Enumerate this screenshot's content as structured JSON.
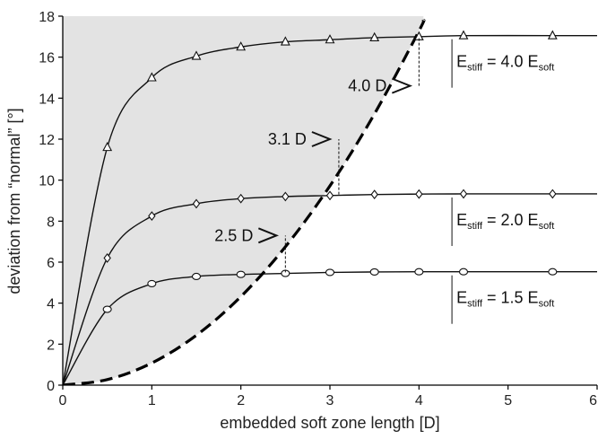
{
  "chart_data": {
    "type": "line",
    "xlabel": "embedded soft zone length [D]",
    "ylabel": "deviation from “normal” [°]",
    "xlim": [
      0,
      6
    ],
    "ylim": [
      0,
      18
    ],
    "x_ticks": [
      "0",
      "1",
      "2",
      "3",
      "4",
      "5",
      "6"
    ],
    "y_ticks": [
      "0",
      "2",
      "4",
      "6",
      "8",
      "10",
      "12",
      "14",
      "16",
      "18"
    ],
    "grid": false,
    "shaded_region_color": "#e3e3e3",
    "series": [
      {
        "marker": "triangle",
        "label_parts": [
          "E",
          "stiff",
          " = 4.0 E",
          "soft"
        ],
        "points": [
          [
            0,
            0
          ],
          [
            0.5,
            11.6
          ],
          [
            1,
            15.0
          ],
          [
            1.5,
            16.05
          ],
          [
            2,
            16.5
          ],
          [
            2.5,
            16.75
          ],
          [
            3,
            16.85
          ],
          [
            3.5,
            16.95
          ],
          [
            4,
            17.0
          ],
          [
            4.5,
            17.05
          ],
          [
            5.5,
            17.05
          ],
          [
            6,
            17.05
          ]
        ],
        "marker_x": [
          0.5,
          1,
          1.5,
          2,
          2.5,
          3,
          3.5,
          4,
          4.5,
          5.5
        ]
      },
      {
        "marker": "diamond",
        "label_parts": [
          "E",
          "stiff",
          " = 2.0 E",
          "soft"
        ],
        "points": [
          [
            0,
            0
          ],
          [
            0.5,
            6.2
          ],
          [
            1,
            8.25
          ],
          [
            1.5,
            8.85
          ],
          [
            2,
            9.1
          ],
          [
            2.5,
            9.2
          ],
          [
            3,
            9.25
          ],
          [
            3.5,
            9.3
          ],
          [
            4,
            9.32
          ],
          [
            4.5,
            9.33
          ],
          [
            5.5,
            9.33
          ],
          [
            6,
            9.33
          ]
        ],
        "marker_x": [
          0.5,
          1,
          1.5,
          2,
          2.5,
          3,
          3.5,
          4,
          4.5,
          5.5
        ]
      },
      {
        "marker": "circle",
        "label_parts": [
          "E",
          "stiff",
          " = 1.5 E",
          "soft"
        ],
        "points": [
          [
            0,
            0
          ],
          [
            0.5,
            3.7
          ],
          [
            1,
            4.95
          ],
          [
            1.5,
            5.3
          ],
          [
            2,
            5.4
          ],
          [
            2.5,
            5.45
          ],
          [
            3,
            5.5
          ],
          [
            3.5,
            5.52
          ],
          [
            4,
            5.53
          ],
          [
            4.5,
            5.53
          ],
          [
            5.5,
            5.53
          ],
          [
            6,
            5.53
          ]
        ],
        "marker_x": [
          0.5,
          1,
          1.5,
          2,
          2.5,
          3,
          3.5,
          4,
          4.5,
          5.5
        ]
      }
    ],
    "boundary_curve": {
      "style": "dashed",
      "points": [
        [
          0,
          0
        ],
        [
          0.5,
          0.27
        ],
        [
          1,
          1.08
        ],
        [
          1.5,
          2.43
        ],
        [
          2,
          4.32
        ],
        [
          2.5,
          6.75
        ],
        [
          3,
          9.72
        ],
        [
          3.5,
          13.23
        ],
        [
          4,
          17.28
        ],
        [
          4.05,
          17.8
        ]
      ]
    },
    "annotations": [
      {
        "text": "2.5 D",
        "x": 2.5,
        "y_from": 5.5,
        "y_to": 7.3
      },
      {
        "text": "3.1 D",
        "x": 3.1,
        "y_from": 9.3,
        "y_to": 12.0
      },
      {
        "text": "4.0 D",
        "x": 4.0,
        "y_from": 14.6,
        "y_to": 17.0
      }
    ]
  }
}
